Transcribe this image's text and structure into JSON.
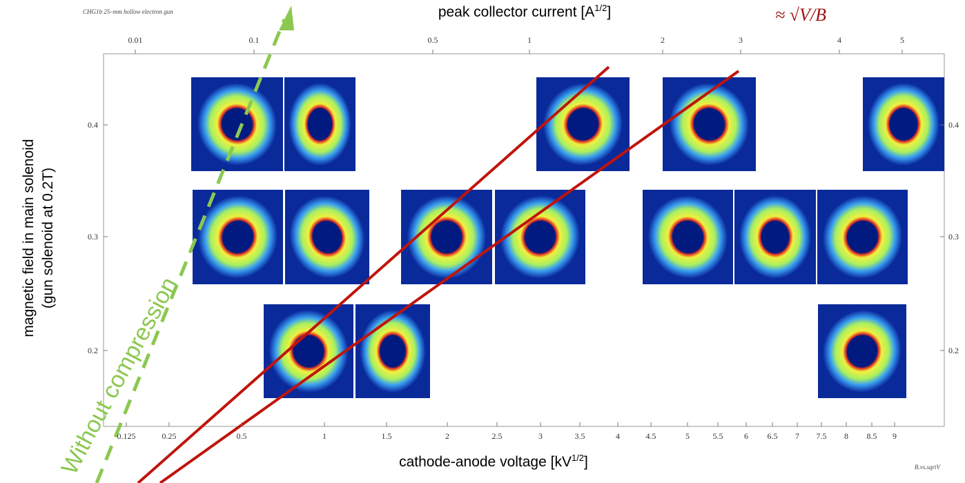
{
  "figure": {
    "caption_small": "CHG1b 25–mm hollow electron gun",
    "top_axis": {
      "label": "peak collector current [A",
      "label_sup": "1/2",
      "label_end": "]",
      "ticks": [
        0.01,
        0.1,
        0.5,
        1,
        2,
        3,
        4,
        5
      ]
    },
    "formula": "≈ √V/B",
    "y_axis": {
      "label_line1": "magnetic field in main solenoid",
      "label_line2": "(gun solenoid at 0.2T)",
      "ticks": [
        0.4,
        0.3,
        0.2
      ]
    },
    "right_ticks": [
      0.4,
      0.3,
      0.2
    ],
    "bottom_axis": {
      "label": "cathode-anode voltage [kV",
      "label_sup": "1/2",
      "label_end": "]",
      "ticks": [
        0.125,
        0.25,
        0.5,
        1,
        1.5,
        2,
        2.5,
        3,
        3.5,
        4,
        4.5,
        5,
        5.5,
        6,
        6.5,
        7,
        7.5,
        8,
        8.5,
        9
      ]
    },
    "annotation": "Without compression",
    "file_tag": "B.vs.sqrtV"
  }
}
